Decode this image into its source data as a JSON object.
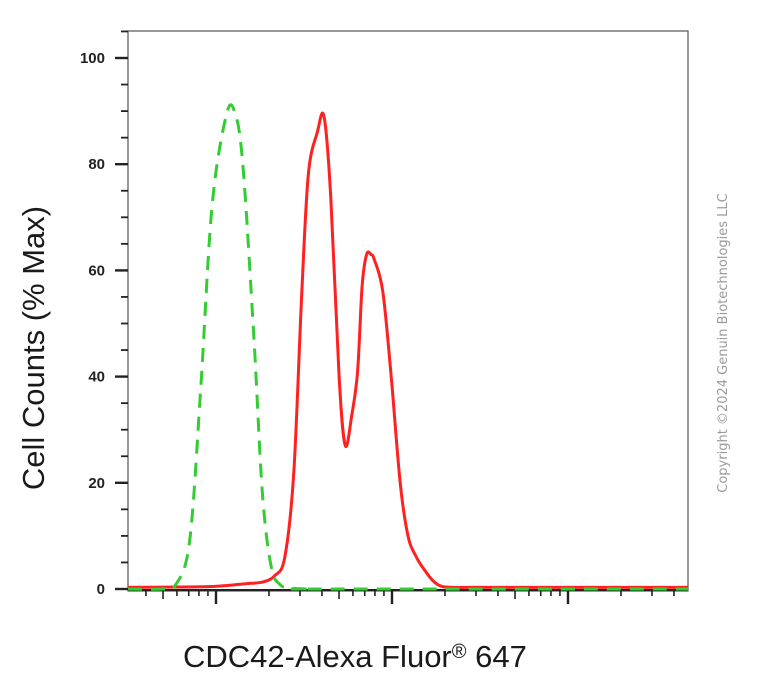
{
  "chart_data": {
    "type": "line",
    "ylabel": "Cell Counts (% Max)",
    "xlabel_main": "CDC42-Alexa Fluor",
    "xlabel_mark": "®",
    "xlabel_tail": " 647",
    "xscale": "log",
    "xlim": [
      0,
      1
    ],
    "ylim": [
      0,
      105
    ],
    "y_ticks": [
      0,
      20,
      40,
      60,
      80,
      100
    ],
    "grid": false,
    "series": [
      {
        "color": "#ff2020",
        "style": "solid",
        "x": [
          0.0,
          0.12,
          0.17,
          0.21,
          0.24,
          0.262,
          0.28,
          0.296,
          0.31,
          0.322,
          0.338,
          0.35,
          0.362,
          0.377,
          0.388,
          0.4,
          0.41,
          0.418,
          0.426,
          0.434,
          0.44,
          0.455,
          0.47,
          0.486,
          0.5,
          0.515,
          0.53,
          0.545,
          0.56,
          0.58,
          0.6,
          0.64,
          0.75,
          0.84,
          1.0
        ],
        "y": [
          0.3,
          0.4,
          0.6,
          1.0,
          1.3,
          2.5,
          6.0,
          22,
          55,
          78,
          86,
          89,
          74,
          40,
          27,
          33,
          41,
          57,
          63,
          63,
          62,
          56,
          40,
          20,
          10,
          6,
          3.5,
          1.5,
          0.5,
          0.3,
          0.3,
          0.3,
          0.3,
          0.3,
          0.3
        ]
      },
      {
        "color": "#33cc33",
        "style": "dashed",
        "x": [
          0.0,
          0.06,
          0.085,
          0.11,
          0.13,
          0.15,
          0.175,
          0.19,
          0.205,
          0.225,
          0.24,
          0.256,
          0.272,
          0.286,
          0.3,
          0.32,
          0.35,
          1.0
        ],
        "y": [
          0.0,
          0.0,
          0.8,
          9.0,
          38,
          72,
          89,
          90,
          80,
          47,
          18,
          4,
          0.8,
          0.2,
          0.1,
          0.0,
          0.0,
          0.0
        ]
      }
    ]
  },
  "watermark": "Copyright ©2024 Genuin Biotechnologies LLC"
}
